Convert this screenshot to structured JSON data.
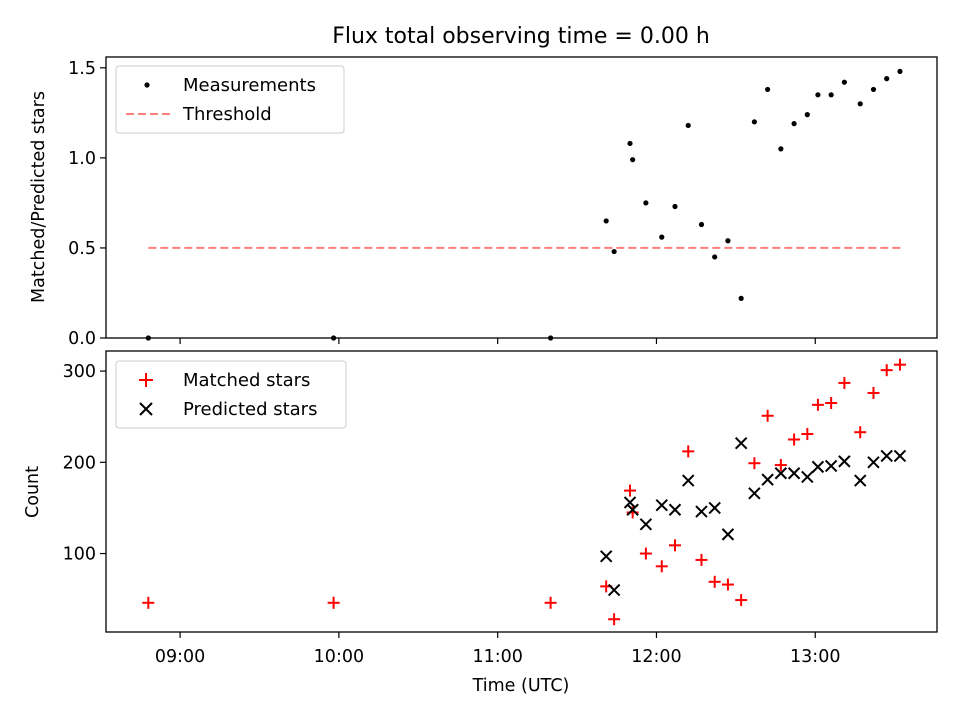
{
  "title": "Flux total observing time = 0.00 h",
  "chart_data": [
    {
      "type": "scatter",
      "ylabel": "Matched/Predicted stars",
      "xlim": [
        "08:32",
        "13:46"
      ],
      "ylim": [
        0,
        1.56
      ],
      "yticks": [
        0.0,
        0.5,
        1.0,
        1.5
      ],
      "ytick_labels": [
        "0.0",
        "0.5",
        "1.0",
        "1.5"
      ],
      "legend_position": "upper-left",
      "legend": [
        "Measurements",
        "Threshold"
      ],
      "threshold": {
        "name": "Threshold",
        "value": 0.5,
        "x_start": "08:48",
        "x_end": "13:33",
        "color": "#ff7f7f",
        "style": "dashed"
      },
      "series": [
        {
          "name": "Measurements",
          "color": "#000000",
          "marker": "dot",
          "points": [
            [
              "08:48",
              0.0
            ],
            [
              "09:58",
              0.0
            ],
            [
              "11:20",
              0.0
            ],
            [
              "11:41",
              0.65
            ],
            [
              "11:44",
              0.48
            ],
            [
              "11:50",
              1.08
            ],
            [
              "11:51",
              0.99
            ],
            [
              "11:56",
              0.75
            ],
            [
              "12:02",
              0.56
            ],
            [
              "12:07",
              0.73
            ],
            [
              "12:12",
              1.18
            ],
            [
              "12:17",
              0.63
            ],
            [
              "12:22",
              0.45
            ],
            [
              "12:27",
              0.54
            ],
            [
              "12:32",
              0.22
            ],
            [
              "12:37",
              1.2
            ],
            [
              "12:42",
              1.38
            ],
            [
              "12:47",
              1.05
            ],
            [
              "12:52",
              1.19
            ],
            [
              "12:57",
              1.24
            ],
            [
              "13:01",
              1.35
            ],
            [
              "13:06",
              1.35
            ],
            [
              "13:11",
              1.42
            ],
            [
              "13:17",
              1.3
            ],
            [
              "13:22",
              1.38
            ],
            [
              "13:27",
              1.44
            ],
            [
              "13:32",
              1.48
            ]
          ]
        }
      ]
    },
    {
      "type": "scatter",
      "xlabel": "Time (UTC)",
      "ylabel": "Count",
      "xlim": [
        "08:32",
        "13:46"
      ],
      "ylim": [
        14,
        322
      ],
      "yticks": [
        100,
        200,
        300
      ],
      "ytick_labels": [
        "100",
        "200",
        "300"
      ],
      "xticks": [
        "09:00",
        "10:00",
        "11:00",
        "12:00",
        "13:00"
      ],
      "xtick_labels": [
        "09:00",
        "10:00",
        "11:00",
        "12:00",
        "13:00"
      ],
      "legend_position": "upper-left",
      "legend": [
        "Matched stars",
        "Predicted stars"
      ],
      "series": [
        {
          "name": "Matched stars",
          "color": "#ff0000",
          "marker": "plus",
          "points": [
            [
              "08:48",
              46
            ],
            [
              "09:58",
              46
            ],
            [
              "11:20",
              46
            ],
            [
              "11:41",
              64
            ],
            [
              "11:44",
              28
            ],
            [
              "11:50",
              169
            ],
            [
              "11:51",
              145
            ],
            [
              "11:56",
              100
            ],
            [
              "12:02",
              86
            ],
            [
              "12:07",
              109
            ],
            [
              "12:12",
              212
            ],
            [
              "12:17",
              93
            ],
            [
              "12:22",
              69
            ],
            [
              "12:27",
              66
            ],
            [
              "12:32",
              49
            ],
            [
              "12:37",
              199
            ],
            [
              "12:42",
              251
            ],
            [
              "12:47",
              197
            ],
            [
              "12:52",
              225
            ],
            [
              "12:57",
              231
            ],
            [
              "13:01",
              263
            ],
            [
              "13:06",
              265
            ],
            [
              "13:11",
              287
            ],
            [
              "13:17",
              233
            ],
            [
              "13:22",
              276
            ],
            [
              "13:27",
              301
            ],
            [
              "13:32",
              307
            ]
          ]
        },
        {
          "name": "Predicted stars",
          "color": "#000000",
          "marker": "x",
          "points": [
            [
              "11:41",
              97
            ],
            [
              "11:44",
              60
            ],
            [
              "11:50",
              156
            ],
            [
              "11:51",
              148
            ],
            [
              "11:56",
              132
            ],
            [
              "12:02",
              153
            ],
            [
              "12:07",
              148
            ],
            [
              "12:12",
              180
            ],
            [
              "12:17",
              146
            ],
            [
              "12:22",
              150
            ],
            [
              "12:27",
              121
            ],
            [
              "12:32",
              221
            ],
            [
              "12:37",
              166
            ],
            [
              "12:42",
              181
            ],
            [
              "12:47",
              188
            ],
            [
              "12:52",
              188
            ],
            [
              "12:57",
              184
            ],
            [
              "13:01",
              195
            ],
            [
              "13:06",
              196
            ],
            [
              "13:11",
              201
            ],
            [
              "13:17",
              180
            ],
            [
              "13:22",
              200
            ],
            [
              "13:27",
              207
            ],
            [
              "13:32",
              207
            ]
          ]
        }
      ]
    }
  ]
}
